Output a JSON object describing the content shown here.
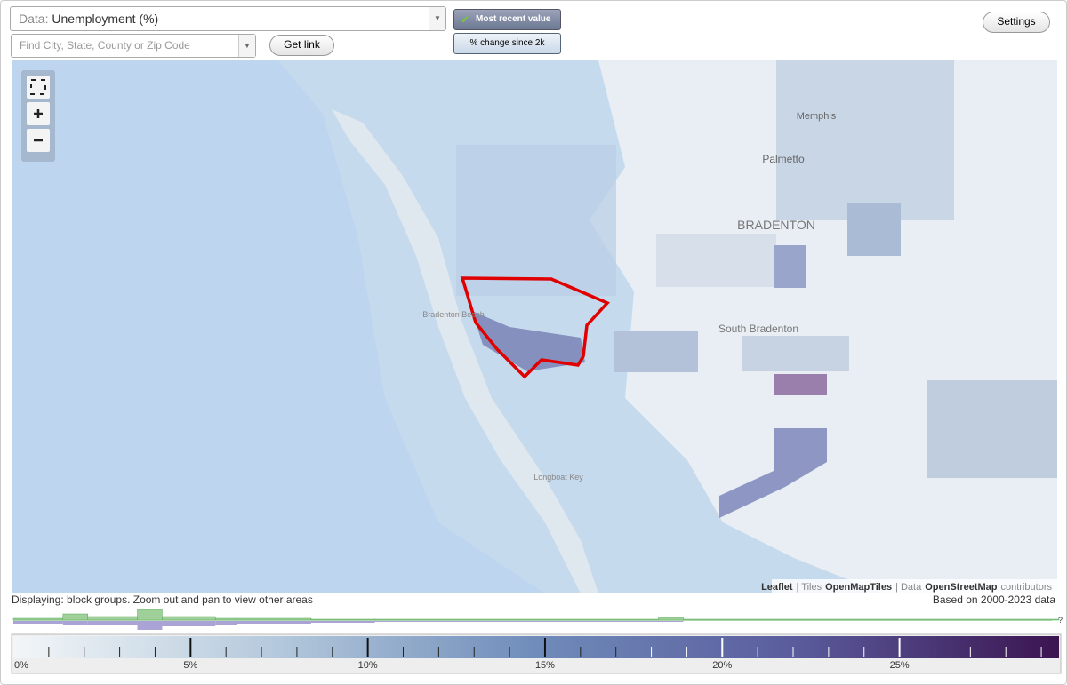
{
  "toolbar": {
    "data_prefix": "Data:",
    "data_value": "Unemployment (%)",
    "search_placeholder": "Find City, State, County or Zip Code",
    "get_link": "Get link",
    "mode_active": "Most recent value",
    "mode_other": "% change since 2k",
    "settings": "Settings"
  },
  "map": {
    "labels": [
      "Memphis",
      "Palmetto",
      "BRADENTON",
      "South Bradenton",
      "Bradenton Beach",
      "Longboat Key"
    ],
    "attribution": [
      "Leaflet",
      "| Tiles",
      "OpenMapTiles",
      "| Data",
      "OpenStreetMap",
      "contributors"
    ]
  },
  "status": {
    "displaying": "Displaying: block groups. Zoom out and pan to view other areas",
    "based_on": "Based on 2000-2023 data",
    "help": "?"
  },
  "legend": {
    "range": [
      0,
      29.5
    ],
    "ticks": [
      {
        "value": 0,
        "label": "0%"
      },
      {
        "value": 5,
        "label": "5%"
      },
      {
        "value": 10,
        "label": "10%"
      },
      {
        "value": 15,
        "label": "15%"
      },
      {
        "value": 20,
        "label": "20%"
      },
      {
        "value": 25,
        "label": "25%"
      }
    ],
    "minor_ticks": [
      1,
      2,
      3,
      4,
      6,
      7,
      8,
      9,
      11,
      12,
      13,
      14,
      16,
      17,
      18,
      19,
      21,
      22,
      23,
      24,
      26,
      27,
      28,
      29
    ],
    "colors": [
      "#f3f6f8",
      "#b4c9dc",
      "#6f8cba",
      "#5a5b9c",
      "#3b1450"
    ],
    "histogram": {
      "bins": [
        0,
        1.4,
        2.1,
        3.5,
        4.2,
        5.7,
        6.3,
        8.4,
        10.2,
        18.2,
        18.9,
        29.5
      ],
      "counts_up": [
        2,
        7,
        4,
        12,
        4,
        2,
        2,
        1,
        1,
        3,
        1
      ],
      "counts_down": [
        3,
        5,
        5,
        10,
        6,
        4,
        3,
        2,
        1,
        1,
        0
      ]
    }
  }
}
